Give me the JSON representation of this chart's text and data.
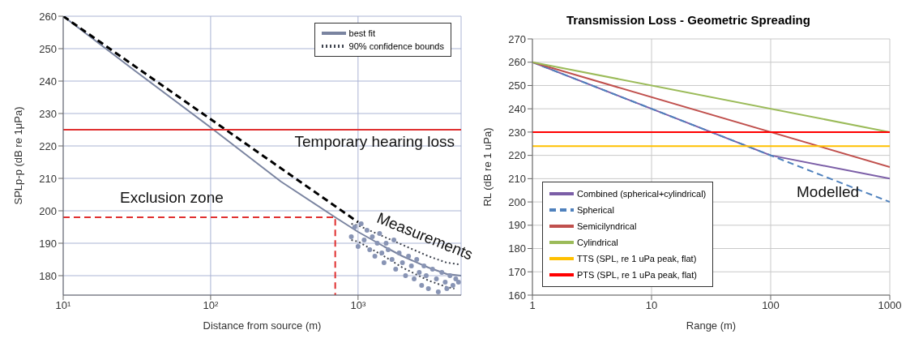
{
  "chart_data": [
    {
      "type": "line",
      "xlabel": "Distance from source (m)",
      "ylabel": "SPLp-p (dB re 1μPa)",
      "log": "x",
      "grid": true,
      "legend": "top right",
      "xlim": [
        10,
        5000
      ],
      "xticks": [
        {
          "value": 10,
          "label": "10¹"
        },
        {
          "value": 100,
          "label": "10²"
        },
        {
          "value": 1000,
          "label": "10³"
        }
      ],
      "ylim": [
        174,
        260
      ],
      "yticks": [
        180,
        190,
        200,
        210,
        220,
        230,
        240,
        250,
        260
      ],
      "ref_lines": [
        {
          "axis": "y",
          "value": 225,
          "label": "Temporary hearing loss",
          "color": "#e03030"
        }
      ],
      "annotations": [
        "Exclusion zone",
        "Measurements"
      ],
      "series": [
        {
          "type": "scatter",
          "color": "#8894b4",
          "x": [
            900,
            950,
            1000,
            1050,
            1100,
            1150,
            1200,
            1250,
            1300,
            1350,
            1400,
            1450,
            1500,
            1550,
            1600,
            1700,
            1750,
            1800,
            1900,
            2000,
            2100,
            2200,
            2300,
            2400,
            2500,
            2600,
            2700,
            2800,
            2900,
            3000,
            3200,
            3400,
            3500,
            3700,
            3900,
            4000,
            4200,
            4400,
            4600,
            4800
          ],
          "values": [
            192,
            195,
            189,
            196,
            191,
            194,
            188,
            192,
            186,
            190,
            193,
            187,
            184,
            190,
            188,
            185,
            191,
            182,
            187,
            184,
            180,
            186,
            183,
            179,
            185,
            181,
            177,
            183,
            180,
            176,
            182,
            179,
            175,
            181,
            178,
            176,
            180,
            177,
            179,
            178
          ]
        },
        {
          "name": "best fit",
          "color": "#7a84a0",
          "line_style": "solid",
          "x": [
            10,
            30,
            100,
            300,
            700,
            1000,
            1500,
            2000,
            3000,
            4000,
            5000
          ],
          "values": [
            260,
            243.5,
            225.7,
            209,
            198,
            193.5,
            189,
            186,
            182.5,
            180.5,
            180
          ]
        },
        {
          "name": "90% confidence bounds",
          "color": "#404550",
          "line_style": "dotted",
          "x": [
            900,
            1000,
            1500,
            2000,
            3000,
            4000,
            4800
          ],
          "values": [
            196,
            195.5,
            192,
            189.5,
            186,
            184,
            183.5
          ]
        },
        {
          "color": "#404550",
          "line_style": "dotted",
          "x": [
            900,
            1000,
            1500,
            2000,
            3000,
            4000,
            4500
          ],
          "values": [
            191,
            190.5,
            186,
            182.5,
            178.5,
            176.5,
            176
          ]
        },
        {
          "color": "#000000",
          "line_style": "dashed",
          "x": [
            10,
            1000
          ],
          "values": [
            260,
            196.5
          ]
        },
        {
          "color": "#e03030",
          "line_style": "dashed",
          "x": [
            10,
            700,
            700
          ],
          "values": [
            198,
            198,
            174
          ]
        }
      ]
    },
    {
      "type": "line",
      "title": "Transmission Loss - Geometric Spreading",
      "xlabel": "Range (m)",
      "ylabel": "RL (dB re 1 uPa)",
      "log": "x",
      "grid": true,
      "legend": "bottom left",
      "xlim": [
        1,
        1000
      ],
      "xticks": [
        1,
        10,
        100,
        1000
      ],
      "ylim": [
        160,
        270
      ],
      "yticks": [
        160,
        170,
        180,
        190,
        200,
        210,
        220,
        230,
        240,
        250,
        260,
        270
      ],
      "annotations": [
        "Modelled"
      ],
      "series": [
        {
          "name": "Combined (spherical+cylindrical)",
          "color": "#7b5ea7",
          "line_style": "solid",
          "x": [
            1,
            100,
            1000
          ],
          "values": [
            260,
            220,
            210
          ]
        },
        {
          "name": "Spherical",
          "color": "#4f81bd",
          "line_style": "dashed",
          "x": [
            1,
            1000
          ],
          "values": [
            260,
            200
          ]
        },
        {
          "name": "Semicilyndrical",
          "color": "#c0504d",
          "line_style": "solid",
          "x": [
            1,
            1000
          ],
          "values": [
            260,
            215
          ]
        },
        {
          "name": "Cylindrical",
          "color": "#9bbb59",
          "line_style": "solid",
          "x": [
            1,
            1000
          ],
          "values": [
            260,
            230
          ]
        },
        {
          "name": "TTS (SPL, re 1 uPa peak, flat)",
          "color": "#ffc000",
          "line_style": "solid",
          "x": [
            1,
            1000
          ],
          "values": [
            224,
            224
          ]
        },
        {
          "name": "PTS (SPL, re 1 uPa peak, flat)",
          "color": "#ff0000",
          "line_style": "solid",
          "x": [
            1,
            1000
          ],
          "values": [
            230,
            230
          ]
        }
      ]
    }
  ]
}
